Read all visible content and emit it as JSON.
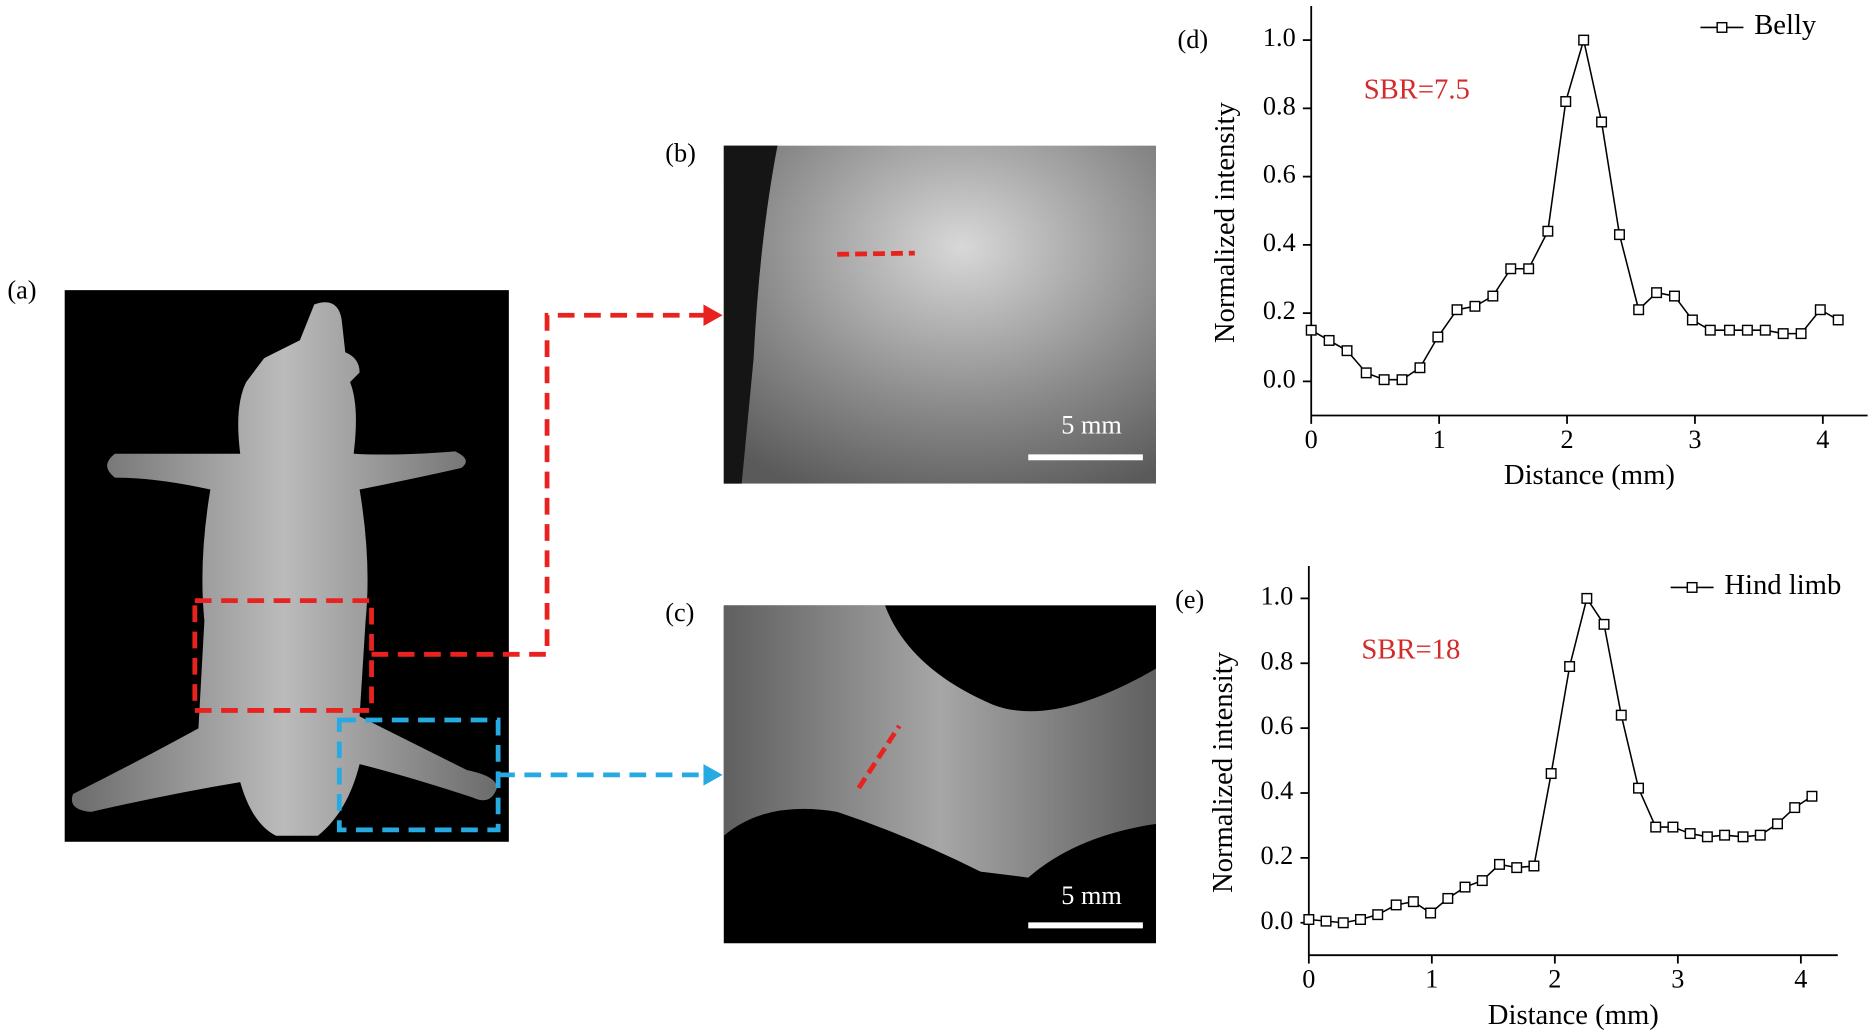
{
  "figure": {
    "labels": [
      "(a)",
      "(b)",
      "(c)"
    ],
    "scale_bars": [
      "5 mm",
      "5 mm"
    ]
  },
  "chart_data": [
    {
      "type": "line",
      "label": "(d)",
      "xlabel": "Distance (mm)",
      "ylabel": "Normalized intensity",
      "annotation": {
        "text": "SBR=7.5",
        "color": "#d42a2a"
      },
      "x": [
        0,
        0.14,
        0.28,
        0.43,
        0.57,
        0.71,
        0.85,
        0.99,
        1.14,
        1.28,
        1.42,
        1.56,
        1.7,
        1.85,
        1.99,
        2.13,
        2.27,
        2.41,
        2.56,
        2.7,
        2.84,
        2.98,
        3.12,
        3.27,
        3.41,
        3.55,
        3.69,
        3.83,
        3.98,
        4.12
      ],
      "series": [
        {
          "name": "Belly",
          "color": "#000000",
          "marker": "open-square",
          "values": [
            0.15,
            0.12,
            0.09,
            0.025,
            0.005,
            0.005,
            0.04,
            0.13,
            0.21,
            0.22,
            0.25,
            0.33,
            0.33,
            0.44,
            0.82,
            1.0,
            0.76,
            0.43,
            0.21,
            0.26,
            0.25,
            0.18,
            0.15,
            0.15,
            0.15,
            0.15,
            0.14,
            0.14,
            0.21,
            0.18
          ]
        }
      ],
      "xlim": [
        0,
        4.35
      ],
      "ylim": [
        -0.1,
        1.1
      ],
      "xticks": [
        0,
        1,
        2,
        3,
        4
      ],
      "yticks": [
        {
          "value": 0,
          "label": "0.0"
        },
        0.2,
        0.4,
        0.6,
        0.8,
        {
          "value": 1,
          "label": "1.0"
        }
      ],
      "legend": "upper right"
    },
    {
      "type": "line",
      "label": "(e)",
      "xlabel": "Distance (mm)",
      "ylabel": "Normalized intensity",
      "annotation": {
        "text": "SBR=18",
        "color": "#d42a2a"
      },
      "x": [
        0,
        0.14,
        0.28,
        0.42,
        0.56,
        0.71,
        0.85,
        0.99,
        1.13,
        1.27,
        1.41,
        1.55,
        1.69,
        1.83,
        1.97,
        2.12,
        2.26,
        2.4,
        2.54,
        2.68,
        2.82,
        2.96,
        3.1,
        3.24,
        3.38,
        3.53,
        3.67,
        3.81,
        3.95,
        4.09
      ],
      "series": [
        {
          "name": "Hind limb",
          "color": "#000000",
          "marker": "open-square",
          "values": [
            0.01,
            0.005,
            0.0,
            0.01,
            0.025,
            0.055,
            0.065,
            0.03,
            0.075,
            0.11,
            0.13,
            0.18,
            0.17,
            0.175,
            0.46,
            0.79,
            1.0,
            0.92,
            0.64,
            0.415,
            0.295,
            0.295,
            0.275,
            0.265,
            0.27,
            0.265,
            0.27,
            0.305,
            0.355,
            0.39
          ]
        }
      ],
      "xlim": [
        0,
        4.3
      ],
      "ylim": [
        -0.1,
        1.1
      ],
      "xticks": [
        0,
        1,
        2,
        3,
        4
      ],
      "yticks": [
        {
          "value": 0,
          "label": "0.0"
        },
        0.2,
        0.4,
        0.6,
        0.8,
        {
          "value": 1,
          "label": "1.0"
        }
      ],
      "legend": "upper right"
    }
  ]
}
